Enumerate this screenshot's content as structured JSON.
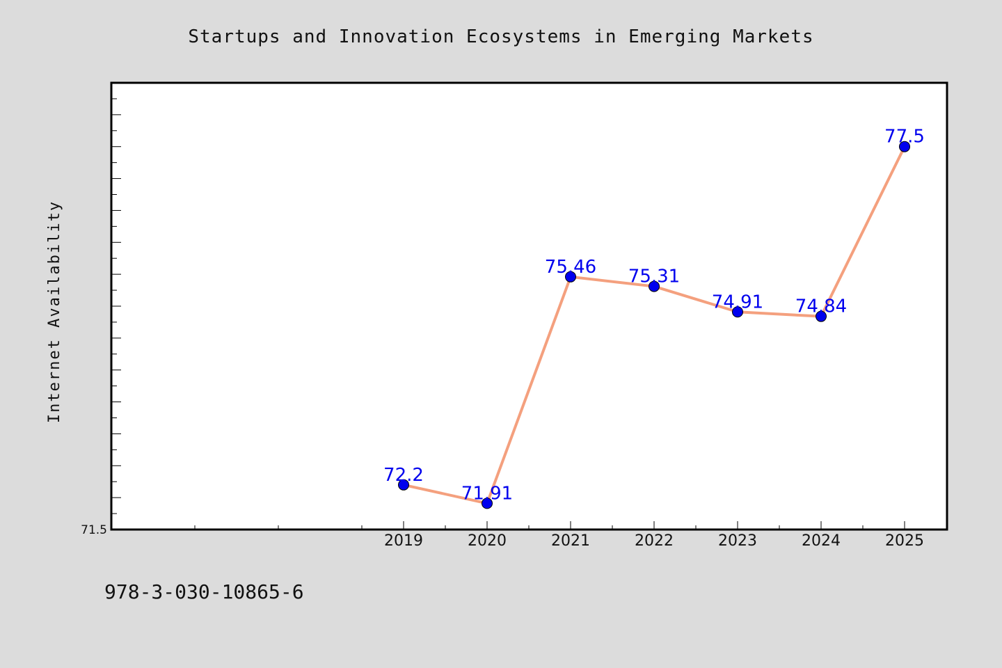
{
  "chart_data": {
    "type": "line",
    "title": "Startups and Innovation Ecosystems in Emerging Markets",
    "xlabel": "",
    "ylabel": "Internet Availability",
    "categories": [
      "2019",
      "2020",
      "2021",
      "2022",
      "2023",
      "2024",
      "2025"
    ],
    "series": [
      {
        "values": [
          72.2,
          71.91,
          75.46,
          75.31,
          74.91,
          74.84,
          77.5
        ],
        "data_labels": [
          "72.2",
          "71.91",
          "75.46",
          "75.31",
          "74.91",
          "74.84",
          "77.5"
        ]
      }
    ],
    "ylim": [
      71.5,
      78.5
    ],
    "y_tick_labels": [
      "71.5"
    ],
    "grid": false,
    "legend": "none",
    "line_color": "#f4a07e",
    "marker_color": "#0000ee",
    "label_color": "#0000ee"
  },
  "footer": {
    "text": "978-3-030-10865-6"
  }
}
